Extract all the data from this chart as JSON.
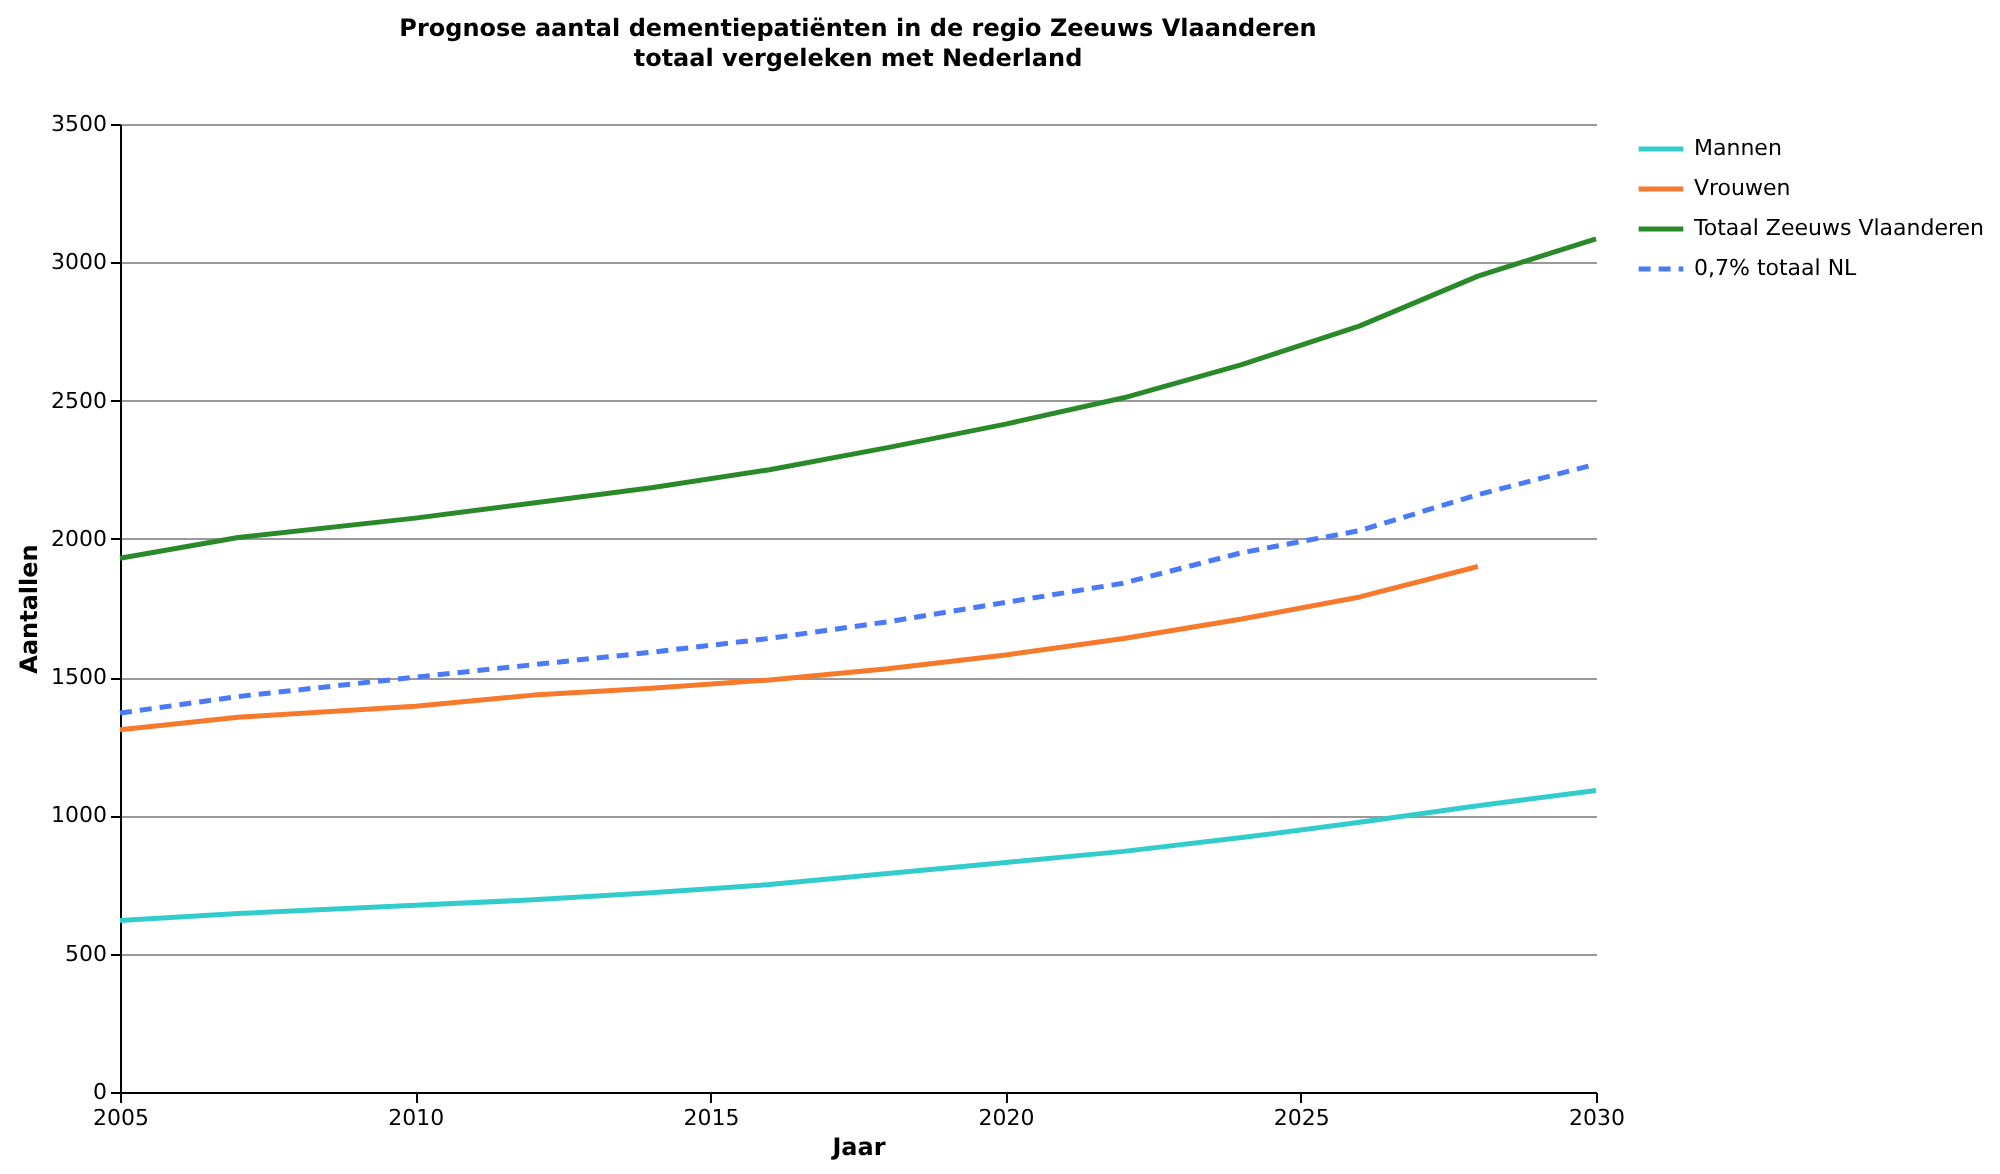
{
  "chart_data": {
    "type": "line",
    "title": "Prognose aantal dementiepatiënten in de regio Zeeuws Vlaanderen",
    "subtitle": "totaal vergeleken met Nederland",
    "xlabel": "Jaar",
    "ylabel": "Aantallen",
    "xlim": [
      2005,
      2030
    ],
    "xticks": [
      2005,
      2010,
      2015,
      2020,
      2025,
      2030
    ],
    "ylim": [
      0,
      3500
    ],
    "yticks": [
      0,
      500,
      1000,
      1500,
      2000,
      2500,
      3000,
      3500
    ],
    "grid": "y",
    "legend": "right",
    "marker": "none",
    "series": [
      {
        "name": "Mannen",
        "color": "#33cccc",
        "line_style": "solid",
        "x": [
          2005,
          2007,
          2010,
          2012,
          2014,
          2016,
          2018,
          2020,
          2022,
          2024,
          2026,
          2028,
          2030
        ],
        "values": [
          620,
          645,
          675,
          695,
          720,
          750,
          790,
          830,
          870,
          920,
          975,
          1035,
          1090
        ]
      },
      {
        "name": "Vrouwen",
        "color": "#f7792b",
        "line_style": "solid",
        "x": [
          2005,
          2007,
          2010,
          2012,
          2014,
          2016,
          2018,
          2020,
          2022,
          2024,
          2026,
          2028
        ],
        "values": [
          1310,
          1355,
          1395,
          1435,
          1460,
          1490,
          1530,
          1580,
          1640,
          1710,
          1790,
          1900
        ]
      },
      {
        "name": "Totaal Zeeuws Vlaanderen",
        "color": "#2a8a2a",
        "line_style": "solid",
        "x": [
          2005,
          2007,
          2010,
          2012,
          2014,
          2016,
          2018,
          2020,
          2022,
          2024,
          2026,
          2028,
          2030
        ],
        "values": [
          1930,
          2005,
          2075,
          2130,
          2185,
          2250,
          2330,
          2415,
          2510,
          2630,
          2770,
          2950,
          3085
        ]
      },
      {
        "name": "0,7% totaal NL",
        "color": "#4a7af5",
        "line_style": "dashed",
        "x": [
          2005,
          2007,
          2010,
          2012,
          2014,
          2016,
          2018,
          2020,
          2022,
          2024,
          2026,
          2028,
          2030
        ],
        "values": [
          1370,
          1430,
          1500,
          1545,
          1590,
          1640,
          1700,
          1770,
          1840,
          1950,
          2030,
          2160,
          2270
        ]
      }
    ]
  }
}
